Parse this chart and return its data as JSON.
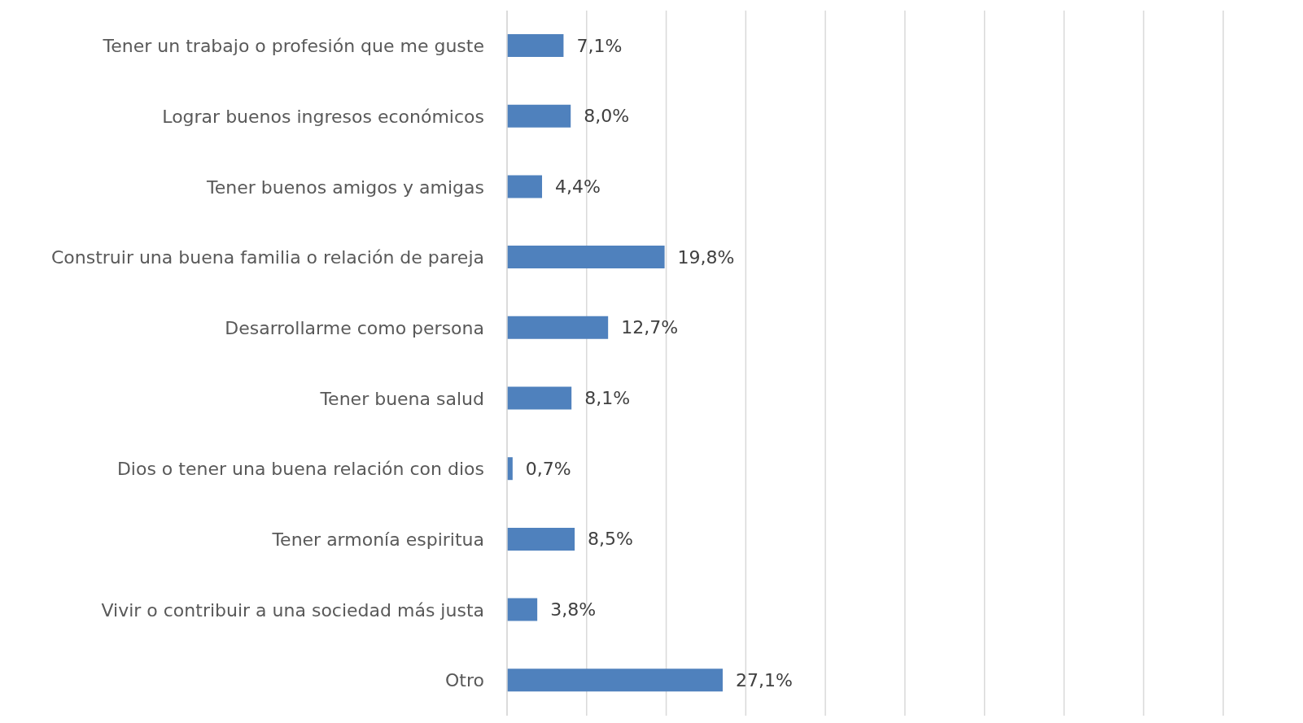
{
  "chart_data": {
    "type": "bar",
    "orientation": "horizontal",
    "categories": [
      "Tener un trabajo o profesión que me guste",
      "Lograr buenos ingresos económicos",
      "Tener buenos amigos y amigas",
      "Construir una buena familia o relación de pareja",
      "Desarrollarme como persona",
      "Tener buena salud",
      "Dios o tener una buena relación con dios",
      "Tener armonía espiritua",
      "Vivir o contribuir a una sociedad más justa",
      "Otro"
    ],
    "values": [
      7.1,
      8.0,
      4.4,
      19.8,
      12.7,
      8.1,
      0.7,
      8.5,
      3.8,
      27.1
    ],
    "value_labels": [
      "7,1%",
      "8,0%",
      "4,4%",
      "19,8%",
      "12,7%",
      "8,1%",
      "0,7%",
      "8,5%",
      "3,8%",
      "27,1%"
    ],
    "color": "#4f81bd",
    "xlim": [
      0,
      90
    ],
    "xticks": [
      {
        "value": 0,
        "label": null
      },
      {
        "value": 10,
        "label": null
      },
      {
        "value": 20,
        "label": null
      },
      {
        "value": 30,
        "label": null
      },
      {
        "value": 40,
        "label": null
      },
      {
        "value": 50,
        "label": null
      },
      {
        "value": 60,
        "label": null
      },
      {
        "value": 70,
        "label": null
      },
      {
        "value": 80,
        "label": null
      },
      {
        "value": 90,
        "label": null
      }
    ],
    "tick_labels": "y",
    "grid": "x",
    "legend": false
  }
}
